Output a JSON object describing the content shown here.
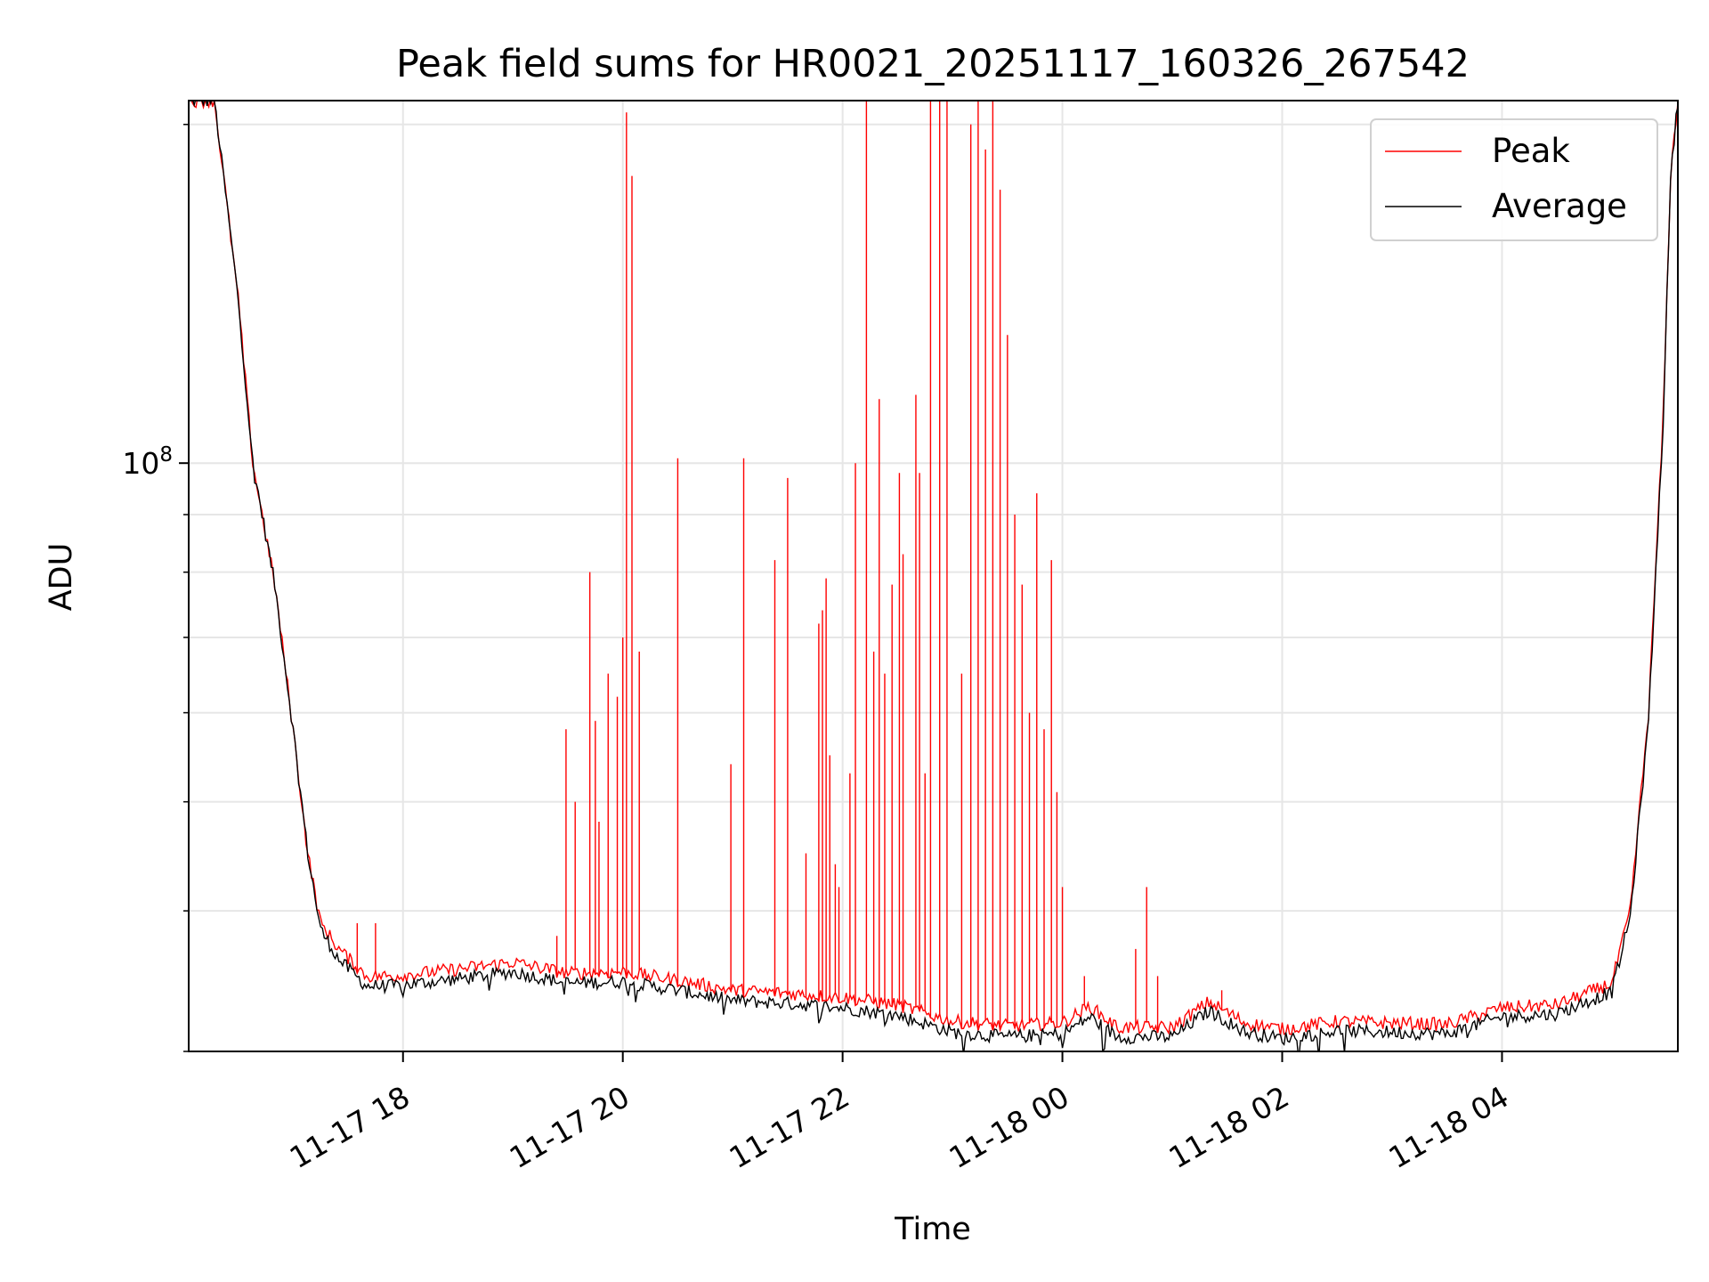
{
  "chart_data": {
    "type": "line",
    "title": "Peak field sums for HR0021_20251117_160326_267542",
    "xlabel": "Time",
    "ylabel": "ADU",
    "y_scale": "log",
    "x_range": [
      "2025-11-17 16:03",
      "2025-11-18 05:36"
    ],
    "ylim": [
      30000000,
      210000000
    ],
    "x_ticks": [
      "11-17 18",
      "11-17 20",
      "11-17 22",
      "11-18 00",
      "11-18 02",
      "11-18 04"
    ],
    "x_tick_times": [
      "2025-11-17 18:00",
      "2025-11-17 20:00",
      "2025-11-17 22:00",
      "2025-11-18 00:00",
      "2025-11-18 02:00",
      "2025-11-18 04:00"
    ],
    "y_major_tick": {
      "value": 100000000,
      "label_base": "10",
      "label_exp": "8"
    },
    "y_minor_ticks": [
      30000000,
      40000000,
      50000000,
      60000000,
      70000000,
      80000000,
      90000000,
      200000000
    ],
    "grid": true,
    "legend_position": "top-right",
    "series": [
      {
        "name": "Peak",
        "color": "#ff0000",
        "baseline": [
          [
            "2025-11-17 16:03",
            210000000
          ],
          [
            "2025-11-17 16:17",
            210000000
          ],
          [
            "2025-11-17 16:22",
            180000000
          ],
          [
            "2025-11-17 16:30",
            140000000
          ],
          [
            "2025-11-17 16:38",
            100000000
          ],
          [
            "2025-11-17 16:50",
            78000000
          ],
          [
            "2025-11-17 17:00",
            58000000
          ],
          [
            "2025-11-17 17:08",
            45000000
          ],
          [
            "2025-11-17 17:15",
            39000000
          ],
          [
            "2025-11-17 17:25",
            37000000
          ],
          [
            "2025-11-17 17:40",
            35000000
          ],
          [
            "2025-11-17 17:55",
            35000000
          ],
          [
            "2025-11-17 18:30",
            35500000
          ],
          [
            "2025-11-17 19:00",
            36000000
          ],
          [
            "2025-11-17 19:30",
            35200000
          ],
          [
            "2025-11-17 20:00",
            35300000
          ],
          [
            "2025-11-17 20:30",
            34700000
          ],
          [
            "2025-11-17 21:00",
            34000000
          ],
          [
            "2025-11-17 21:30",
            33800000
          ],
          [
            "2025-11-17 22:00",
            33500000
          ],
          [
            "2025-11-17 22:30",
            33000000
          ],
          [
            "2025-11-17 23:00",
            31900000
          ],
          [
            "2025-11-17 23:30",
            31600000
          ],
          [
            "2025-11-18 00:00",
            31800000
          ],
          [
            "2025-11-18 00:15",
            32900000
          ],
          [
            "2025-11-18 00:30",
            31500000
          ],
          [
            "2025-11-18 01:00",
            31500000
          ],
          [
            "2025-11-18 01:20",
            33200000
          ],
          [
            "2025-11-18 01:40",
            31800000
          ],
          [
            "2025-11-18 02:00",
            31400000
          ],
          [
            "2025-11-18 02:30",
            31900000
          ],
          [
            "2025-11-18 03:00",
            31800000
          ],
          [
            "2025-11-18 03:30",
            31700000
          ],
          [
            "2025-11-18 04:00",
            32800000
          ],
          [
            "2025-11-18 04:30",
            33000000
          ],
          [
            "2025-11-18 05:00",
            34500000
          ],
          [
            "2025-11-18 05:10",
            40000000
          ],
          [
            "2025-11-18 05:20",
            60000000
          ],
          [
            "2025-11-18 05:28",
            110000000
          ],
          [
            "2025-11-18 05:32",
            180000000
          ],
          [
            "2025-11-18 05:36",
            210000000
          ]
        ],
        "spikes": [
          [
            "2025-11-17 17:35",
            39000000
          ],
          [
            "2025-11-17 17:45",
            39000000
          ],
          [
            "2025-11-17 19:24",
            38000000
          ],
          [
            "2025-11-17 19:29",
            58000000
          ],
          [
            "2025-11-17 19:34",
            50000000
          ],
          [
            "2025-11-17 19:42",
            80000000
          ],
          [
            "2025-11-17 19:45",
            59000000
          ],
          [
            "2025-11-17 19:47",
            48000000
          ],
          [
            "2025-11-17 19:52",
            65000000
          ],
          [
            "2025-11-17 19:57",
            62000000
          ],
          [
            "2025-11-17 20:00",
            70000000
          ],
          [
            "2025-11-17 20:02",
            205000000
          ],
          [
            "2025-11-17 20:05",
            180000000
          ],
          [
            "2025-11-17 20:09",
            68000000
          ],
          [
            "2025-11-17 20:30",
            101000000
          ],
          [
            "2025-11-17 20:59",
            54000000
          ],
          [
            "2025-11-17 21:06",
            101000000
          ],
          [
            "2025-11-17 21:23",
            82000000
          ],
          [
            "2025-11-17 21:30",
            97000000
          ],
          [
            "2025-11-17 21:40",
            45000000
          ],
          [
            "2025-11-17 21:47",
            72000000
          ],
          [
            "2025-11-17 21:49",
            74000000
          ],
          [
            "2025-11-17 21:51",
            79000000
          ],
          [
            "2025-11-17 21:53",
            55000000
          ],
          [
            "2025-11-17 21:56",
            44000000
          ],
          [
            "2025-11-17 21:58",
            42000000
          ],
          [
            "2025-11-17 22:04",
            53000000
          ],
          [
            "2025-11-17 22:07",
            100000000
          ],
          [
            "2025-11-17 22:13",
            210000000
          ],
          [
            "2025-11-17 22:17",
            68000000
          ],
          [
            "2025-11-17 22:20",
            114000000
          ],
          [
            "2025-11-17 22:23",
            65000000
          ],
          [
            "2025-11-17 22:27",
            78000000
          ],
          [
            "2025-11-17 22:31",
            98000000
          ],
          [
            "2025-11-17 22:33",
            83000000
          ],
          [
            "2025-11-17 22:40",
            115000000
          ],
          [
            "2025-11-17 22:42",
            98000000
          ],
          [
            "2025-11-17 22:45",
            53000000
          ],
          [
            "2025-11-17 22:48",
            210000000
          ],
          [
            "2025-11-17 22:53",
            210000000
          ],
          [
            "2025-11-17 22:57",
            210000000
          ],
          [
            "2025-11-17 23:05",
            65000000
          ],
          [
            "2025-11-17 23:10",
            200000000
          ],
          [
            "2025-11-17 23:14",
            210000000
          ],
          [
            "2025-11-17 23:18",
            190000000
          ],
          [
            "2025-11-17 23:22",
            210000000
          ],
          [
            "2025-11-17 23:26",
            175000000
          ],
          [
            "2025-11-17 23:30",
            130000000
          ],
          [
            "2025-11-17 23:34",
            90000000
          ],
          [
            "2025-11-17 23:38",
            78000000
          ],
          [
            "2025-11-17 23:42",
            60000000
          ],
          [
            "2025-11-17 23:46",
            94000000
          ],
          [
            "2025-11-17 23:50",
            58000000
          ],
          [
            "2025-11-17 23:54",
            82000000
          ],
          [
            "2025-11-17 23:57",
            51000000
          ],
          [
            "2025-11-18 00:00",
            42000000
          ],
          [
            "2025-11-18 00:12",
            35000000
          ],
          [
            "2025-11-18 00:40",
            37000000
          ],
          [
            "2025-11-18 00:46",
            42000000
          ],
          [
            "2025-11-18 00:52",
            35000000
          ],
          [
            "2025-11-18 01:27",
            34000000
          ]
        ]
      },
      {
        "name": "Average",
        "color": "#000000",
        "baseline": [
          [
            "2025-11-17 16:03",
            210000000
          ],
          [
            "2025-11-17 16:17",
            210000000
          ],
          [
            "2025-11-17 16:22",
            180000000
          ],
          [
            "2025-11-17 16:30",
            140000000
          ],
          [
            "2025-11-17 16:38",
            100000000
          ],
          [
            "2025-11-17 16:50",
            78000000
          ],
          [
            "2025-11-17 17:00",
            58000000
          ],
          [
            "2025-11-17 17:08",
            45000000
          ],
          [
            "2025-11-17 17:15",
            38500000
          ],
          [
            "2025-11-17 17:25",
            36200000
          ],
          [
            "2025-11-17 17:40",
            34300000
          ],
          [
            "2025-11-17 17:55",
            34300000
          ],
          [
            "2025-11-17 18:30",
            34800000
          ],
          [
            "2025-11-17 19:00",
            35300000
          ],
          [
            "2025-11-17 19:30",
            34500000
          ],
          [
            "2025-11-17 20:00",
            34600000
          ],
          [
            "2025-11-17 20:30",
            34000000
          ],
          [
            "2025-11-17 21:00",
            33300000
          ],
          [
            "2025-11-17 21:30",
            33100000
          ],
          [
            "2025-11-17 22:00",
            32800000
          ],
          [
            "2025-11-17 22:30",
            32300000
          ],
          [
            "2025-11-17 23:00",
            31200000
          ],
          [
            "2025-11-17 23:30",
            30900000
          ],
          [
            "2025-11-18 00:00",
            31100000
          ],
          [
            "2025-11-18 00:15",
            32200000
          ],
          [
            "2025-11-18 00:30",
            30900000
          ],
          [
            "2025-11-18 01:00",
            30900000
          ],
          [
            "2025-11-18 01:20",
            32600000
          ],
          [
            "2025-11-18 01:40",
            31200000
          ],
          [
            "2025-11-18 02:00",
            30800000
          ],
          [
            "2025-11-18 02:30",
            31300000
          ],
          [
            "2025-11-18 03:00",
            31200000
          ],
          [
            "2025-11-18 03:30",
            31100000
          ],
          [
            "2025-11-18 04:00",
            32200000
          ],
          [
            "2025-11-18 04:30",
            32400000
          ],
          [
            "2025-11-18 05:00",
            33900000
          ],
          [
            "2025-11-18 05:10",
            39500000
          ],
          [
            "2025-11-18 05:20",
            59000000
          ],
          [
            "2025-11-18 05:28",
            109000000
          ],
          [
            "2025-11-18 05:32",
            179000000
          ],
          [
            "2025-11-18 05:36",
            210000000
          ]
        ]
      }
    ]
  }
}
